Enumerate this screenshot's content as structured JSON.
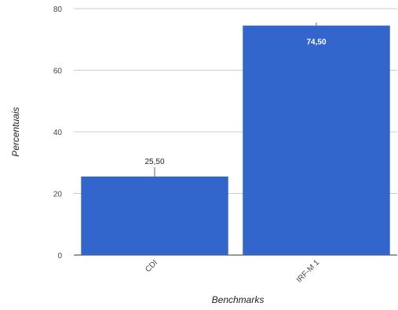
{
  "chart_data": {
    "type": "bar",
    "categories": [
      "CDI",
      "IRF-M 1"
    ],
    "values": [
      25.5,
      74.5
    ],
    "data_labels": [
      "25,50",
      "74,50"
    ],
    "xlabel": "Benchmarks",
    "ylabel": "Percentuais",
    "ylim": [
      0,
      80
    ],
    "yticks": [
      "0",
      "20",
      "40",
      "60",
      "80"
    ],
    "grid": true,
    "legend": "none",
    "bar_color": "#3366cc",
    "grid_color": "#cccccc"
  }
}
